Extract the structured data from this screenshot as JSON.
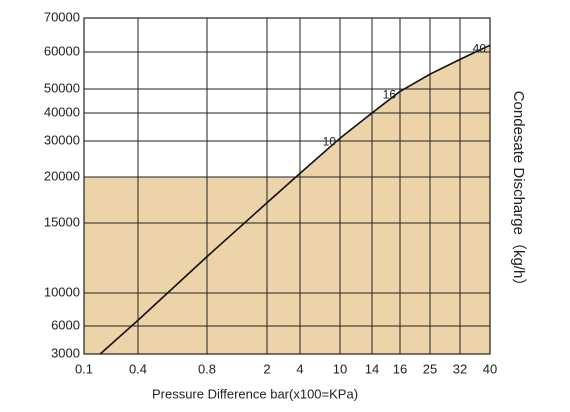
{
  "chart_data": {
    "type": "line",
    "x_label": "Pressure Difference bar(x100=KPa)",
    "y_label": "Condesate Discharge（kg/h）",
    "x": [
      0.19,
      0.4,
      0.8,
      2,
      4,
      10,
      14,
      16,
      25,
      32,
      40
    ],
    "series": [
      {
        "color": "#111111",
        "fill": "#ecd3a8",
        "values": [
          3000,
          6700,
          12600,
          17200,
          21000,
          31000,
          40000,
          49000,
          54000,
          58000,
          62000
        ]
      }
    ],
    "annotations": [
      "10",
      "16",
      "40"
    ],
    "xlim": [
      0.1,
      40
    ],
    "xticks": [
      0.1,
      0.4,
      0.8,
      2,
      4,
      10,
      14,
      16,
      25,
      32,
      40
    ],
    "ylim": [
      3000,
      70000
    ],
    "yticks": [
      3000,
      6000,
      10000,
      15000,
      20000,
      30000,
      40000,
      50000,
      60000,
      70000
    ],
    "grid": true
  }
}
